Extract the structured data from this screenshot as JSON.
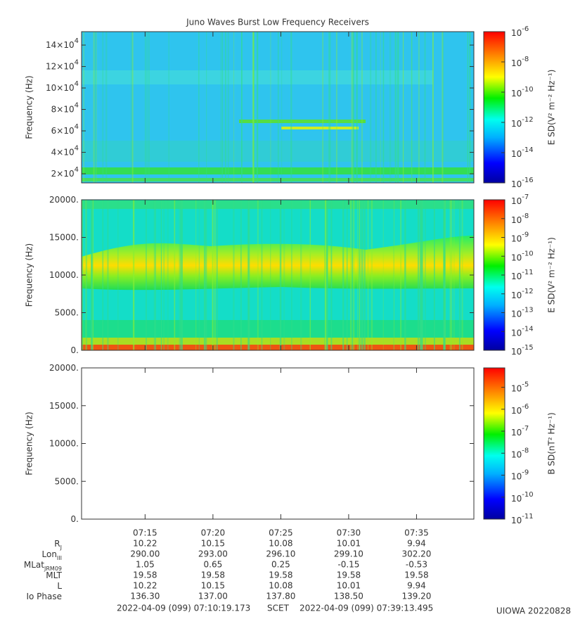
{
  "title": "Juno Waves Burst Low Frequency Receivers",
  "chart_data": [
    {
      "type": "spectrogram",
      "ylabel": "Frequency (Hz)",
      "ylim": [
        11500,
        152500
      ],
      "yticks": [
        {
          "value": 20000,
          "label": "2×10",
          "sup": "4"
        },
        {
          "value": 40000,
          "label": "4×10",
          "sup": "4"
        },
        {
          "value": 60000,
          "label": "6×10",
          "sup": "4"
        },
        {
          "value": 80000,
          "label": "8×10",
          "sup": "4"
        },
        {
          "value": 100000,
          "label": "10×10",
          "sup": "4"
        },
        {
          "value": 120000,
          "label": "12×10",
          "sup": "4"
        },
        {
          "value": 140000,
          "label": "14×10",
          "sup": "4"
        }
      ],
      "colorbar": {
        "label": "E SD(V² m⁻² Hz⁻¹)",
        "log": true,
        "lim": [
          1e-16,
          1e-06
        ],
        "ticks": [
          {
            "value": 1e-16,
            "label": "10",
            "sup": "-16"
          },
          {
            "value": 1e-14,
            "label": "10",
            "sup": "-14"
          },
          {
            "value": 1e-12,
            "label": "10",
            "sup": "-12"
          },
          {
            "value": 1e-10,
            "label": "10",
            "sup": "-10"
          },
          {
            "value": 1e-08,
            "label": "10",
            "sup": "-8"
          },
          {
            "value": 1e-06,
            "label": "10",
            "sup": "-6"
          }
        ]
      }
    },
    {
      "type": "spectrogram",
      "ylabel": "Frequency (Hz)",
      "ylim": [
        0,
        20000
      ],
      "yticks": [
        {
          "value": 0,
          "label": "0."
        },
        {
          "value": 5000,
          "label": "5000."
        },
        {
          "value": 10000,
          "label": "10000."
        },
        {
          "value": 15000,
          "label": "15000."
        },
        {
          "value": 20000,
          "label": "20000."
        }
      ],
      "colorbar": {
        "label": "E SD(V² m⁻² Hz⁻¹)",
        "log": true,
        "lim": [
          1e-15,
          1e-07
        ],
        "ticks": [
          {
            "value": 1e-15,
            "label": "10",
            "sup": "-15"
          },
          {
            "value": 1e-14,
            "label": "10",
            "sup": "-14"
          },
          {
            "value": 1e-13,
            "label": "10",
            "sup": "-13"
          },
          {
            "value": 1e-12,
            "label": "10",
            "sup": "-12"
          },
          {
            "value": 1e-11,
            "label": "10",
            "sup": "-11"
          },
          {
            "value": 1e-10,
            "label": "10",
            "sup": "-10"
          },
          {
            "value": 1e-09,
            "label": "10",
            "sup": "-9"
          },
          {
            "value": 1e-08,
            "label": "10",
            "sup": "-8"
          },
          {
            "value": 1e-07,
            "label": "10",
            "sup": "-7"
          }
        ]
      }
    },
    {
      "type": "spectrogram",
      "ylabel": "Frequency (Hz)",
      "ylim": [
        0,
        20000
      ],
      "yticks": [
        {
          "value": 0,
          "label": "0."
        },
        {
          "value": 5000,
          "label": "5000."
        },
        {
          "value": 10000,
          "label": "10000."
        },
        {
          "value": 15000,
          "label": "15000."
        },
        {
          "value": 20000,
          "label": "20000."
        }
      ],
      "colorbar": {
        "label": "B SD(nT² Hz⁻¹)",
        "log": true,
        "lim": [
          1e-11,
          7.6e-05
        ],
        "ticks": [
          {
            "value": 1e-11,
            "label": "10",
            "sup": "-11"
          },
          {
            "value": 1e-10,
            "label": "10",
            "sup": "-10"
          },
          {
            "value": 1e-09,
            "label": "10",
            "sup": "-9"
          },
          {
            "value": 1e-08,
            "label": "10",
            "sup": "-8"
          },
          {
            "value": 1e-07,
            "label": "10",
            "sup": "-7"
          },
          {
            "value": 1e-06,
            "label": "10",
            "sup": "-6"
          },
          {
            "value": 1e-05,
            "label": "10",
            "sup": "-5"
          }
        ]
      },
      "xlim": [
        25819.173,
        27553.495
      ],
      "xticks": [
        {
          "value": 26100,
          "label": "07:15"
        },
        {
          "value": 26400,
          "label": "07:20"
        },
        {
          "value": 26700,
          "label": "07:25"
        },
        {
          "value": 27000,
          "label": "07:30"
        },
        {
          "value": 27300,
          "label": "07:35"
        }
      ]
    }
  ],
  "ephemeris": [
    {
      "label": "R",
      "sub": "J",
      "values": [
        "10.22",
        "10.15",
        "10.08",
        "10.01",
        "9.94"
      ]
    },
    {
      "label": "Lon",
      "sub": "III",
      "values": [
        "290.00",
        "293.00",
        "296.10",
        "299.10",
        "302.20"
      ]
    },
    {
      "label": "MLat",
      "sub": "JRM09",
      "values": [
        "1.05",
        "0.65",
        "0.25",
        "-0.15",
        "-0.53"
      ]
    },
    {
      "label": "MLT",
      "values": [
        "19.58",
        "19.58",
        "19.58",
        "19.58",
        "19.58"
      ]
    },
    {
      "label": "L",
      "values": [
        "10.22",
        "10.15",
        "10.08",
        "10.01",
        "9.94"
      ]
    },
    {
      "label": "Io Phase",
      "values": [
        "136.30",
        "137.00",
        "137.80",
        "138.50",
        "139.20"
      ]
    }
  ],
  "footer": {
    "start": "2022-04-09 (099) 07:10:19.173",
    "scale": "SCET",
    "end": "2022-04-09 (099) 07:39:13.495",
    "stamp": "UIOWA 20220828"
  }
}
